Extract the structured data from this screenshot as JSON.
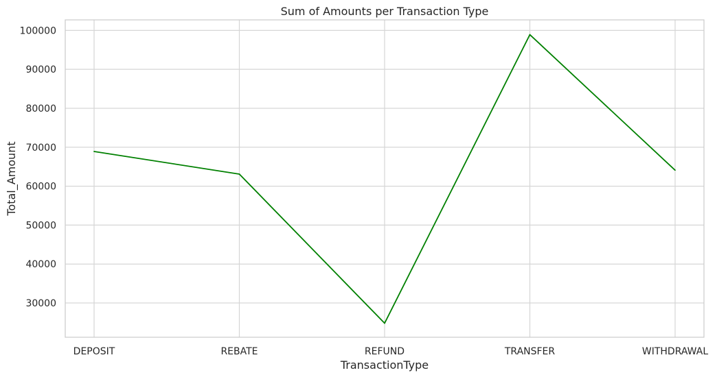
{
  "chart_data": {
    "type": "line",
    "title": "Sum of Amounts per Transaction Type",
    "xlabel": "TransactionType",
    "ylabel": "Total_Amount",
    "categories": [
      "DEPOSIT",
      "REBATE",
      "REFUND",
      "TRANSFER",
      "WITHDRAWAL"
    ],
    "series": [
      {
        "name": "Total_Amount",
        "values": [
          68900,
          63100,
          24800,
          98900,
          64100
        ],
        "color": "#008000"
      }
    ],
    "yticks": [
      30000,
      40000,
      50000,
      60000,
      70000,
      80000,
      90000,
      100000
    ],
    "ylim": [
      21200,
      102700
    ],
    "grid": true,
    "colors": {
      "grid": "#d6d6d6",
      "spine": "#cccccc",
      "text": "#262626"
    }
  }
}
